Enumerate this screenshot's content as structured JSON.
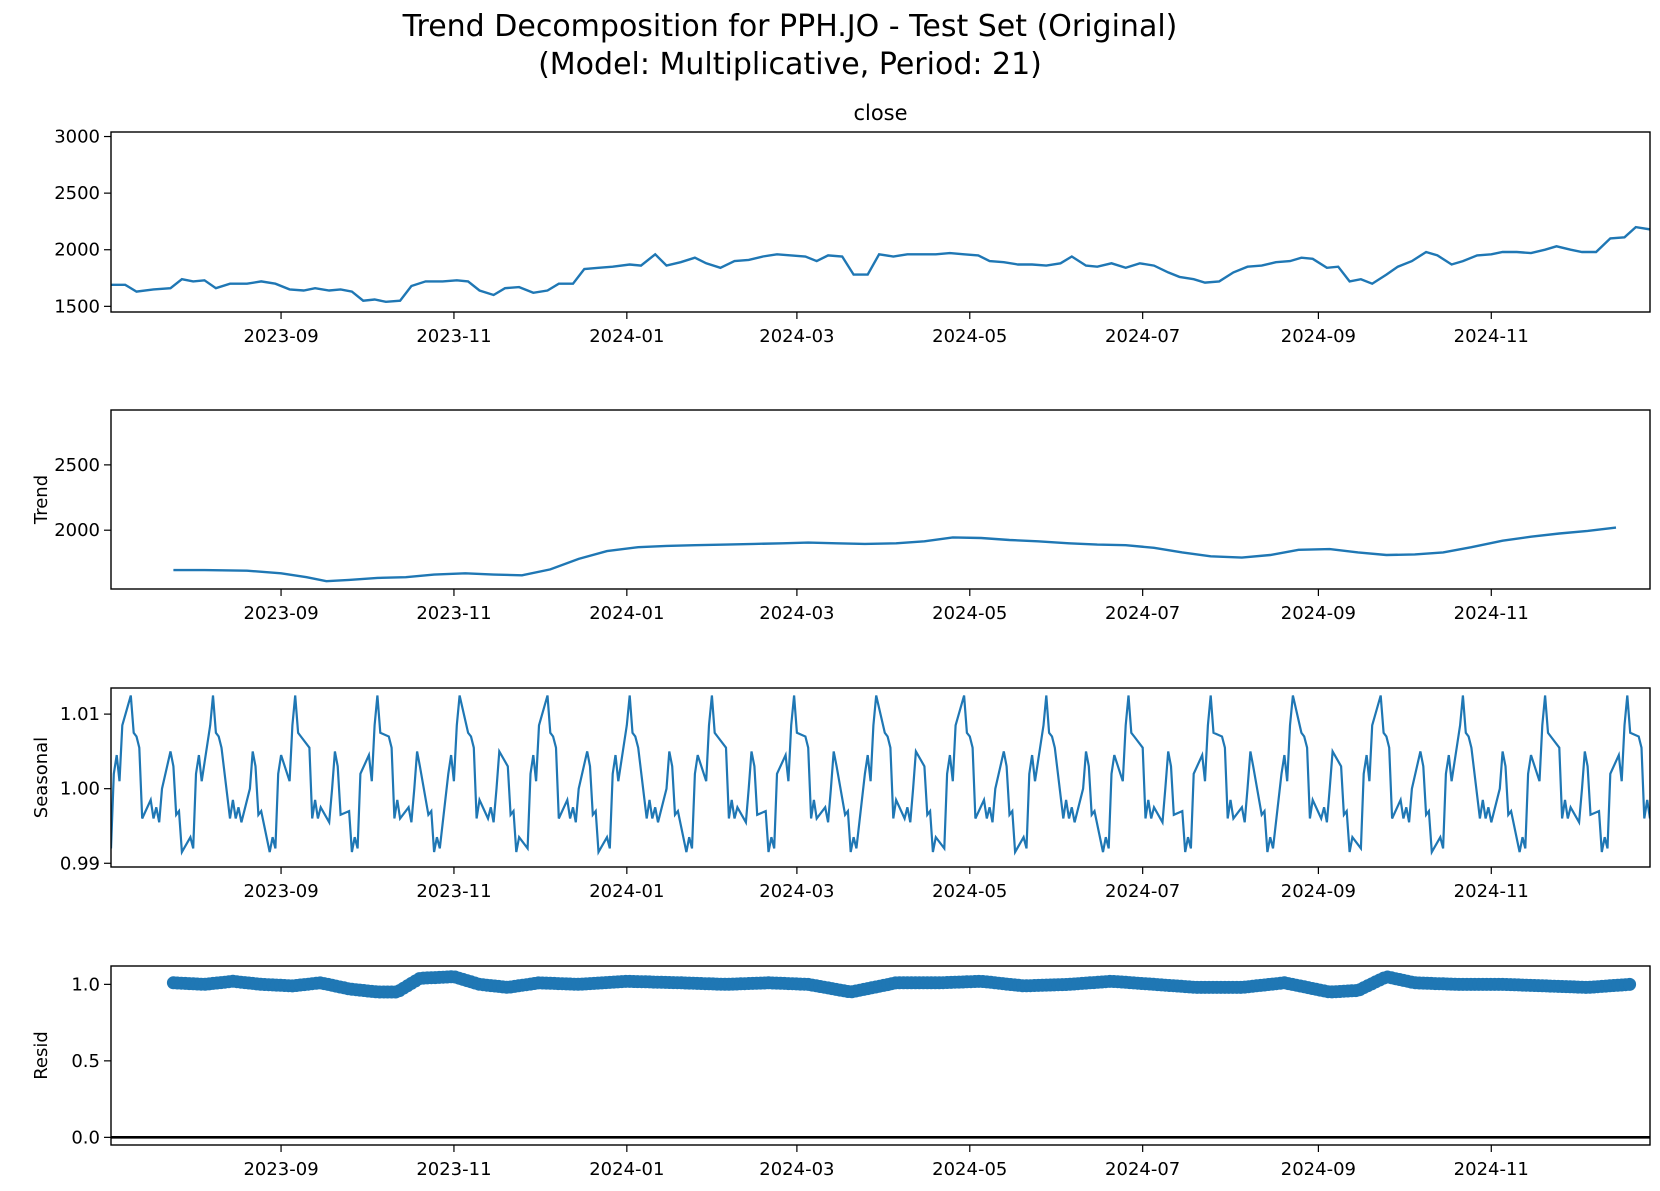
{
  "chart_data": {
    "type": "line",
    "title": "Trend Decomposition for PPH.JO - Test Set (Original)",
    "subtitle": "(Model: Multiplicative, Period: 21)",
    "x_range": [
      "2023-07-03",
      "2024-12-27"
    ],
    "x_ticks": [
      "2023-09",
      "2023-11",
      "2024-01",
      "2024-03",
      "2024-05",
      "2024-07",
      "2024-09",
      "2024-11"
    ],
    "color": "#1f77b4",
    "panels": [
      {
        "name": "observed",
        "title": "close",
        "ylabel": "",
        "type": "line",
        "ylim": [
          1450,
          3040
        ],
        "yticks": [
          1500,
          2000,
          2500,
          3000
        ],
        "points": [
          [
            "2023-07-03",
            1690
          ],
          [
            "2023-07-08",
            1690
          ],
          [
            "2023-07-12",
            1630
          ],
          [
            "2023-07-18",
            1650
          ],
          [
            "2023-07-24",
            1660
          ],
          [
            "2023-07-28",
            1740
          ],
          [
            "2023-08-01",
            1720
          ],
          [
            "2023-08-05",
            1730
          ],
          [
            "2023-08-09",
            1660
          ],
          [
            "2023-08-14",
            1700
          ],
          [
            "2023-08-20",
            1700
          ],
          [
            "2023-08-25",
            1720
          ],
          [
            "2023-08-30",
            1700
          ],
          [
            "2023-09-04",
            1650
          ],
          [
            "2023-09-09",
            1640
          ],
          [
            "2023-09-13",
            1660
          ],
          [
            "2023-09-18",
            1640
          ],
          [
            "2023-09-22",
            1650
          ],
          [
            "2023-09-26",
            1630
          ],
          [
            "2023-09-30",
            1550
          ],
          [
            "2023-10-04",
            1560
          ],
          [
            "2023-10-08",
            1540
          ],
          [
            "2023-10-13",
            1550
          ],
          [
            "2023-10-17",
            1680
          ],
          [
            "2023-10-22",
            1720
          ],
          [
            "2023-10-28",
            1720
          ],
          [
            "2023-11-02",
            1730
          ],
          [
            "2023-11-06",
            1720
          ],
          [
            "2023-11-10",
            1640
          ],
          [
            "2023-11-15",
            1600
          ],
          [
            "2023-11-19",
            1660
          ],
          [
            "2023-11-24",
            1670
          ],
          [
            "2023-11-29",
            1620
          ],
          [
            "2023-12-04",
            1640
          ],
          [
            "2023-12-08",
            1700
          ],
          [
            "2023-12-13",
            1700
          ],
          [
            "2023-12-17",
            1830
          ],
          [
            "2023-12-22",
            1840
          ],
          [
            "2023-12-27",
            1850
          ],
          [
            "2024-01-02",
            1870
          ],
          [
            "2024-01-06",
            1860
          ],
          [
            "2024-01-11",
            1960
          ],
          [
            "2024-01-15",
            1860
          ],
          [
            "2024-01-20",
            1890
          ],
          [
            "2024-01-25",
            1930
          ],
          [
            "2024-01-29",
            1880
          ],
          [
            "2024-02-03",
            1840
          ],
          [
            "2024-02-08",
            1900
          ],
          [
            "2024-02-13",
            1910
          ],
          [
            "2024-02-18",
            1940
          ],
          [
            "2024-02-23",
            1960
          ],
          [
            "2024-02-28",
            1950
          ],
          [
            "2024-03-04",
            1940
          ],
          [
            "2024-03-08",
            1900
          ],
          [
            "2024-03-12",
            1950
          ],
          [
            "2024-03-17",
            1940
          ],
          [
            "2024-03-21",
            1780
          ],
          [
            "2024-03-26",
            1780
          ],
          [
            "2024-03-30",
            1960
          ],
          [
            "2024-04-04",
            1940
          ],
          [
            "2024-04-09",
            1960
          ],
          [
            "2024-04-14",
            1960
          ],
          [
            "2024-04-19",
            1960
          ],
          [
            "2024-04-24",
            1970
          ],
          [
            "2024-04-29",
            1960
          ],
          [
            "2024-05-04",
            1950
          ],
          [
            "2024-05-08",
            1900
          ],
          [
            "2024-05-13",
            1890
          ],
          [
            "2024-05-18",
            1870
          ],
          [
            "2024-05-23",
            1870
          ],
          [
            "2024-05-28",
            1860
          ],
          [
            "2024-06-02",
            1880
          ],
          [
            "2024-06-06",
            1940
          ],
          [
            "2024-06-11",
            1860
          ],
          [
            "2024-06-15",
            1850
          ],
          [
            "2024-06-20",
            1880
          ],
          [
            "2024-06-25",
            1840
          ],
          [
            "2024-06-30",
            1880
          ],
          [
            "2024-07-05",
            1860
          ],
          [
            "2024-07-10",
            1800
          ],
          [
            "2024-07-14",
            1760
          ],
          [
            "2024-07-19",
            1740
          ],
          [
            "2024-07-23",
            1710
          ],
          [
            "2024-07-28",
            1720
          ],
          [
            "2024-08-02",
            1800
          ],
          [
            "2024-08-07",
            1850
          ],
          [
            "2024-08-12",
            1860
          ],
          [
            "2024-08-17",
            1890
          ],
          [
            "2024-08-22",
            1900
          ],
          [
            "2024-08-26",
            1930
          ],
          [
            "2024-08-30",
            1920
          ],
          [
            "2024-09-04",
            1840
          ],
          [
            "2024-09-08",
            1850
          ],
          [
            "2024-09-12",
            1720
          ],
          [
            "2024-09-16",
            1740
          ],
          [
            "2024-09-20",
            1700
          ],
          [
            "2024-09-25",
            1780
          ],
          [
            "2024-09-29",
            1850
          ],
          [
            "2024-10-04",
            1900
          ],
          [
            "2024-10-09",
            1980
          ],
          [
            "2024-10-13",
            1950
          ],
          [
            "2024-10-18",
            1870
          ],
          [
            "2024-10-22",
            1900
          ],
          [
            "2024-10-27",
            1950
          ],
          [
            "2024-11-01",
            1960
          ],
          [
            "2024-11-05",
            1980
          ],
          [
            "2024-11-10",
            1980
          ],
          [
            "2024-11-15",
            1970
          ],
          [
            "2024-11-20",
            2000
          ],
          [
            "2024-11-24",
            2030
          ],
          [
            "2024-11-29",
            2000
          ],
          [
            "2024-12-03",
            1980
          ],
          [
            "2024-12-08",
            1980
          ],
          [
            "2024-12-13",
            2100
          ],
          [
            "2024-12-18",
            2110
          ],
          [
            "2024-12-22",
            2200
          ],
          [
            "2024-12-27",
            2180
          ]
        ]
      },
      {
        "name": "trend",
        "title": "",
        "ylabel": "Trend",
        "type": "line",
        "ylim": [
          1550,
          2920
        ],
        "yticks": [
          2000,
          2500
        ],
        "points": [
          [
            "2023-07-25",
            1695
          ],
          [
            "2023-08-05",
            1695
          ],
          [
            "2023-08-20",
            1690
          ],
          [
            "2023-09-01",
            1670
          ],
          [
            "2023-09-10",
            1640
          ],
          [
            "2023-09-17",
            1610
          ],
          [
            "2023-09-25",
            1620
          ],
          [
            "2023-10-05",
            1635
          ],
          [
            "2023-10-15",
            1640
          ],
          [
            "2023-10-25",
            1660
          ],
          [
            "2023-11-05",
            1670
          ],
          [
            "2023-11-15",
            1660
          ],
          [
            "2023-11-25",
            1655
          ],
          [
            "2023-12-05",
            1700
          ],
          [
            "2023-12-15",
            1780
          ],
          [
            "2023-12-25",
            1840
          ],
          [
            "2024-01-05",
            1870
          ],
          [
            "2024-01-15",
            1880
          ],
          [
            "2024-01-25",
            1885
          ],
          [
            "2024-02-05",
            1890
          ],
          [
            "2024-02-15",
            1895
          ],
          [
            "2024-02-25",
            1900
          ],
          [
            "2024-03-05",
            1905
          ],
          [
            "2024-03-15",
            1900
          ],
          [
            "2024-03-25",
            1895
          ],
          [
            "2024-04-05",
            1900
          ],
          [
            "2024-04-15",
            1915
          ],
          [
            "2024-04-25",
            1945
          ],
          [
            "2024-05-05",
            1940
          ],
          [
            "2024-05-15",
            1925
          ],
          [
            "2024-05-25",
            1915
          ],
          [
            "2024-06-05",
            1900
          ],
          [
            "2024-06-15",
            1890
          ],
          [
            "2024-06-25",
            1885
          ],
          [
            "2024-07-05",
            1865
          ],
          [
            "2024-07-15",
            1830
          ],
          [
            "2024-07-25",
            1800
          ],
          [
            "2024-08-05",
            1790
          ],
          [
            "2024-08-15",
            1810
          ],
          [
            "2024-08-25",
            1850
          ],
          [
            "2024-09-05",
            1855
          ],
          [
            "2024-09-15",
            1830
          ],
          [
            "2024-09-25",
            1810
          ],
          [
            "2024-10-05",
            1815
          ],
          [
            "2024-10-15",
            1830
          ],
          [
            "2024-10-25",
            1870
          ],
          [
            "2024-11-05",
            1920
          ],
          [
            "2024-11-15",
            1950
          ],
          [
            "2024-11-25",
            1975
          ],
          [
            "2024-12-05",
            1995
          ],
          [
            "2024-12-15",
            2020
          ]
        ]
      },
      {
        "name": "seasonal",
        "title": "",
        "ylabel": "Seasonal",
        "type": "line",
        "period": 21,
        "ylim": [
          0.9895,
          1.0135
        ],
        "yticks": [
          0.99,
          1.0,
          1.01
        ],
        "cycle": [
          1.0125,
          1.0075,
          1.007,
          1.0055,
          0.996,
          0.9985,
          0.996,
          0.9975,
          0.9955,
          1.0,
          1.005,
          1.003,
          0.9965,
          0.997,
          0.9915,
          0.9935,
          0.992,
          1.002,
          1.0045,
          1.001,
          1.0085
        ],
        "start_phase": 16
      },
      {
        "name": "resid",
        "title": "",
        "ylabel": "Resid",
        "type": "scatter",
        "ylim": [
          -0.05,
          1.12
        ],
        "yticks": [
          0.0,
          0.5,
          1.0
        ],
        "baseline": 0.0,
        "points": [
          [
            "2023-07-25",
            1.01
          ],
          [
            "2023-08-05",
            1.0
          ],
          [
            "2023-08-15",
            1.02
          ],
          [
            "2023-08-25",
            1.0
          ],
          [
            "2023-09-05",
            0.99
          ],
          [
            "2023-09-15",
            1.01
          ],
          [
            "2023-09-25",
            0.97
          ],
          [
            "2023-10-05",
            0.95
          ],
          [
            "2023-10-12",
            0.95
          ],
          [
            "2023-10-20",
            1.04
          ],
          [
            "2023-11-01",
            1.05
          ],
          [
            "2023-11-10",
            1.0
          ],
          [
            "2023-11-20",
            0.98
          ],
          [
            "2023-12-01",
            1.01
          ],
          [
            "2023-12-15",
            1.0
          ],
          [
            "2024-01-01",
            1.02
          ],
          [
            "2024-01-20",
            1.01
          ],
          [
            "2024-02-05",
            1.0
          ],
          [
            "2024-02-20",
            1.01
          ],
          [
            "2024-03-05",
            1.0
          ],
          [
            "2024-03-20",
            0.95
          ],
          [
            "2024-04-05",
            1.01
          ],
          [
            "2024-04-20",
            1.01
          ],
          [
            "2024-05-05",
            1.02
          ],
          [
            "2024-05-20",
            0.99
          ],
          [
            "2024-06-05",
            1.0
          ],
          [
            "2024-06-20",
            1.02
          ],
          [
            "2024-07-05",
            1.0
          ],
          [
            "2024-07-20",
            0.98
          ],
          [
            "2024-08-05",
            0.98
          ],
          [
            "2024-08-20",
            1.01
          ],
          [
            "2024-09-05",
            0.95
          ],
          [
            "2024-09-15",
            0.96
          ],
          [
            "2024-09-25",
            1.05
          ],
          [
            "2024-10-05",
            1.01
          ],
          [
            "2024-10-20",
            1.0
          ],
          [
            "2024-11-05",
            1.0
          ],
          [
            "2024-11-20",
            0.99
          ],
          [
            "2024-12-05",
            0.98
          ],
          [
            "2024-12-20",
            1.0
          ]
        ]
      }
    ]
  }
}
